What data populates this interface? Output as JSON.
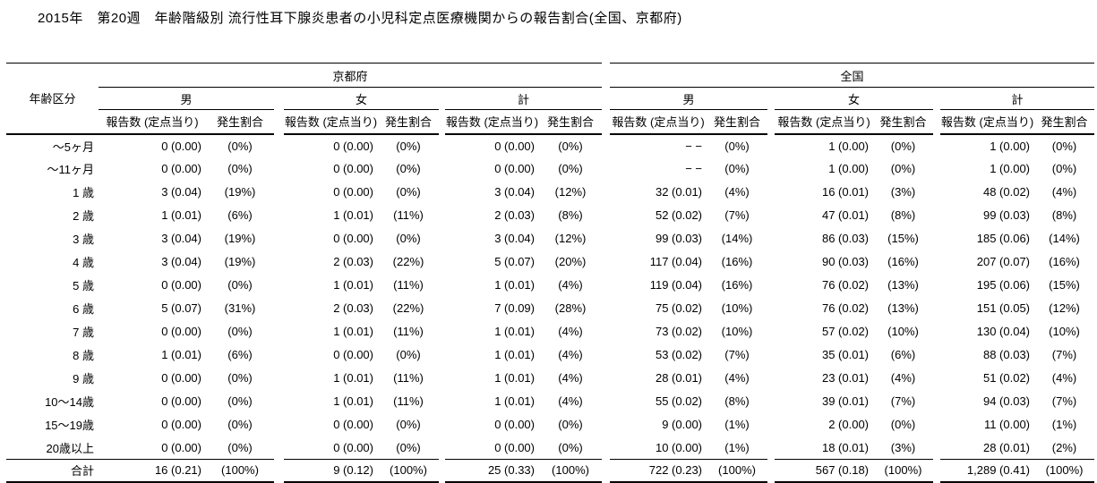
{
  "title": "2015年　第20週　年齢階級別 流行性耳下腺炎患者の小児科定点医療機関からの報告割合(全国、京都府)",
  "table": {
    "age_column_header": "年齢区分",
    "region_headers": [
      "京都府",
      "全国"
    ],
    "sex_headers": [
      "男",
      "女",
      "計"
    ],
    "metric_headers": {
      "reports": "報告数 (定点当り)",
      "rate": "発生割合"
    },
    "rows": [
      {
        "age": "～5ヶ月",
        "values": [
          "0 (0.00)",
          "(0%)",
          "0 (0.00)",
          "(0%)",
          "0 (0.00)",
          "(0%)",
          "− −",
          "(0%)",
          "1 (0.00)",
          "(0%)",
          "1 (0.00)",
          "(0%)"
        ]
      },
      {
        "age": "～11ヶ月",
        "values": [
          "0 (0.00)",
          "(0%)",
          "0 (0.00)",
          "(0%)",
          "0 (0.00)",
          "(0%)",
          "− −",
          "(0%)",
          "1 (0.00)",
          "(0%)",
          "1 (0.00)",
          "(0%)"
        ]
      },
      {
        "age": "1 歳",
        "values": [
          "3 (0.04)",
          "(19%)",
          "0 (0.00)",
          "(0%)",
          "3 (0.04)",
          "(12%)",
          "32 (0.01)",
          "(4%)",
          "16 (0.01)",
          "(3%)",
          "48 (0.02)",
          "(4%)"
        ]
      },
      {
        "age": "2 歳",
        "values": [
          "1 (0.01)",
          "(6%)",
          "1 (0.01)",
          "(11%)",
          "2 (0.03)",
          "(8%)",
          "52 (0.02)",
          "(7%)",
          "47 (0.01)",
          "(8%)",
          "99 (0.03)",
          "(8%)"
        ]
      },
      {
        "age": "3 歳",
        "values": [
          "3 (0.04)",
          "(19%)",
          "0 (0.00)",
          "(0%)",
          "3 (0.04)",
          "(12%)",
          "99 (0.03)",
          "(14%)",
          "86 (0.03)",
          "(15%)",
          "185 (0.06)",
          "(14%)"
        ]
      },
      {
        "age": "4 歳",
        "values": [
          "3 (0.04)",
          "(19%)",
          "2 (0.03)",
          "(22%)",
          "5 (0.07)",
          "(20%)",
          "117 (0.04)",
          "(16%)",
          "90 (0.03)",
          "(16%)",
          "207 (0.07)",
          "(16%)"
        ]
      },
      {
        "age": "5 歳",
        "values": [
          "0 (0.00)",
          "(0%)",
          "1 (0.01)",
          "(11%)",
          "1 (0.01)",
          "(4%)",
          "119 (0.04)",
          "(16%)",
          "76 (0.02)",
          "(13%)",
          "195 (0.06)",
          "(15%)"
        ]
      },
      {
        "age": "6 歳",
        "values": [
          "5 (0.07)",
          "(31%)",
          "2 (0.03)",
          "(22%)",
          "7 (0.09)",
          "(28%)",
          "75 (0.02)",
          "(10%)",
          "76 (0.02)",
          "(13%)",
          "151 (0.05)",
          "(12%)"
        ]
      },
      {
        "age": "7 歳",
        "values": [
          "0 (0.00)",
          "(0%)",
          "1 (0.01)",
          "(11%)",
          "1 (0.01)",
          "(4%)",
          "73 (0.02)",
          "(10%)",
          "57 (0.02)",
          "(10%)",
          "130 (0.04)",
          "(10%)"
        ]
      },
      {
        "age": "8 歳",
        "values": [
          "1 (0.01)",
          "(6%)",
          "0 (0.00)",
          "(0%)",
          "1 (0.01)",
          "(4%)",
          "53 (0.02)",
          "(7%)",
          "35 (0.01)",
          "(6%)",
          "88 (0.03)",
          "(7%)"
        ]
      },
      {
        "age": "9 歳",
        "values": [
          "0 (0.00)",
          "(0%)",
          "1 (0.01)",
          "(11%)",
          "1 (0.01)",
          "(4%)",
          "28 (0.01)",
          "(4%)",
          "23 (0.01)",
          "(4%)",
          "51 (0.02)",
          "(4%)"
        ]
      },
      {
        "age": "10～14歳",
        "values": [
          "0 (0.00)",
          "(0%)",
          "1 (0.01)",
          "(11%)",
          "1 (0.01)",
          "(4%)",
          "55 (0.02)",
          "(8%)",
          "39 (0.01)",
          "(7%)",
          "94 (0.03)",
          "(7%)"
        ]
      },
      {
        "age": "15～19歳",
        "values": [
          "0 (0.00)",
          "(0%)",
          "0 (0.00)",
          "(0%)",
          "0 (0.00)",
          "(0%)",
          "9 (0.00)",
          "(1%)",
          "2 (0.00)",
          "(0%)",
          "11 (0.00)",
          "(1%)"
        ]
      },
      {
        "age": "20歳以上",
        "values": [
          "0 (0.00)",
          "(0%)",
          "0 (0.00)",
          "(0%)",
          "0 (0.00)",
          "(0%)",
          "10 (0.00)",
          "(1%)",
          "18 (0.01)",
          "(3%)",
          "28 (0.01)",
          "(2%)"
        ]
      }
    ],
    "total": {
      "age": "合計",
      "values": [
        "16 (0.21)",
        "(100%)",
        "9 (0.12)",
        "(100%)",
        "25 (0.33)",
        "(100%)",
        "722 (0.23)",
        "(100%)",
        "567 (0.18)",
        "(100%)",
        "1,289 (0.41)",
        "(100%)"
      ]
    }
  }
}
